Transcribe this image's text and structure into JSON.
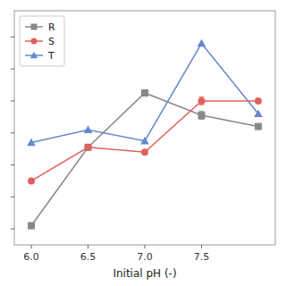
{
  "chart_data": {
    "type": "line",
    "x": [
      6.0,
      6.5,
      7.0,
      7.5,
      8.0
    ],
    "series": [
      {
        "name": "R",
        "color": "#888888",
        "marker": "square",
        "values": [
          1.1,
          3.55,
          5.25,
          4.55,
          4.2
        ],
        "errors": [
          null,
          null,
          null,
          0.12,
          null
        ]
      },
      {
        "name": "S",
        "color": "#e06060",
        "marker": "circle",
        "values": [
          2.5,
          3.55,
          3.4,
          5.0,
          5.0
        ],
        "errors": [
          null,
          null,
          null,
          0.12,
          null
        ]
      },
      {
        "name": "T",
        "color": "#6688cc",
        "marker": "triangle",
        "values": [
          3.7,
          4.1,
          3.75,
          6.8,
          4.6
        ]
      }
    ],
    "x_label": "Initial pH (-)",
    "xlim": [
      5.85,
      8.15
    ],
    "xticks": [
      {
        "value": 6.0,
        "label": "6.0"
      },
      6.5,
      {
        "value": 7.0,
        "label": "7.0"
      },
      7.5
    ],
    "ylim": [
      0.5,
      7.82
    ],
    "yticks": [
      1,
      2,
      3,
      4,
      5,
      6,
      7
    ],
    "tick_labels": "x",
    "grid": false,
    "legend": "upper left"
  }
}
